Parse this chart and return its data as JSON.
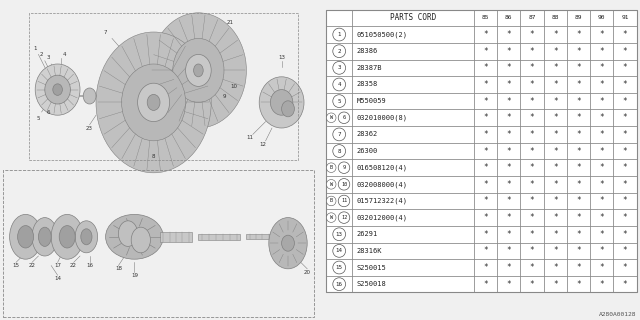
{
  "bg_color": "#f0f0f0",
  "ref_code": "A280A00128",
  "header_years": [
    "85",
    "86",
    "87",
    "88",
    "89",
    "90",
    "91"
  ],
  "rows": [
    [
      "1",
      "051050500(2)",
      null,
      null
    ],
    [
      "2",
      "28386",
      null,
      null
    ],
    [
      "3",
      "28387B",
      null,
      null
    ],
    [
      "4",
      "28358",
      null,
      null
    ],
    [
      "5",
      "M550059",
      null,
      null
    ],
    [
      "6",
      "032010000(8)",
      "W",
      null
    ],
    [
      "7",
      "28362",
      null,
      null
    ],
    [
      "8",
      "26300",
      null,
      null
    ],
    [
      "9",
      "016508120(4)",
      "B",
      null
    ],
    [
      "10",
      "032008000(4)",
      "W",
      null
    ],
    [
      "11",
      "015712322(4)",
      "B",
      null
    ],
    [
      "12",
      "032012000(4)",
      "W",
      null
    ],
    [
      "13",
      "26291",
      null,
      null
    ],
    [
      "14",
      "28316K",
      null,
      null
    ],
    [
      "15",
      "S250015",
      null,
      null
    ],
    [
      "16",
      "S250018",
      null,
      null
    ]
  ]
}
